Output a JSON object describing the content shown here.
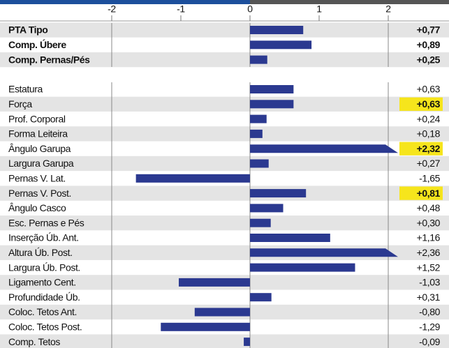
{
  "chart_data": {
    "type": "bar",
    "xlim": [
      -2,
      2
    ],
    "xticks": [
      -2,
      -1,
      0,
      1,
      2
    ],
    "color": "#2b3990",
    "summary": {
      "categories": [
        "PTA Tipo",
        "Comp. Úbere",
        "Comp. Pernas/Pés"
      ],
      "values": [
        0.77,
        0.89,
        0.25
      ],
      "value_labels": [
        "+0,77",
        "+0,89",
        "+0,25"
      ]
    },
    "categories": [
      "Estatura",
      "Força",
      "Prof. Corporal",
      "Forma Leiteira",
      "Ângulo Garupa",
      "Largura Garupa",
      "Pernas V. Lat.",
      "Pernas V. Post.",
      "Ângulo Casco",
      "Esc. Pernas e Pés",
      "Inserção Úb. Ant.",
      "Altura Úb. Post.",
      "Largura Úb. Post.",
      "Ligamento Cent.",
      "Profundidade Úb.",
      "Coloc. Tetos Ant.",
      "Coloc. Tetos Post.",
      "Comp. Tetos"
    ],
    "values": [
      0.63,
      0.63,
      0.24,
      0.18,
      2.32,
      0.27,
      -1.65,
      0.81,
      0.48,
      0.3,
      1.16,
      2.36,
      1.52,
      -1.03,
      0.31,
      -0.8,
      -1.29,
      -0.09
    ],
    "value_labels": [
      "+0,63",
      "+0,63",
      "+0,24",
      "+0,18",
      "+2,32",
      "+0,27",
      "-1,65",
      "+0,81",
      "+0,48",
      "+0,30",
      "+1,16",
      "+2,36",
      "+1,52",
      "-1,03",
      "+0,31",
      "-0,80",
      "-1,29",
      "-0,09"
    ],
    "highlight": [
      false,
      true,
      false,
      false,
      true,
      false,
      false,
      true,
      false,
      false,
      false,
      false,
      false,
      false,
      false,
      false,
      false,
      false
    ]
  }
}
